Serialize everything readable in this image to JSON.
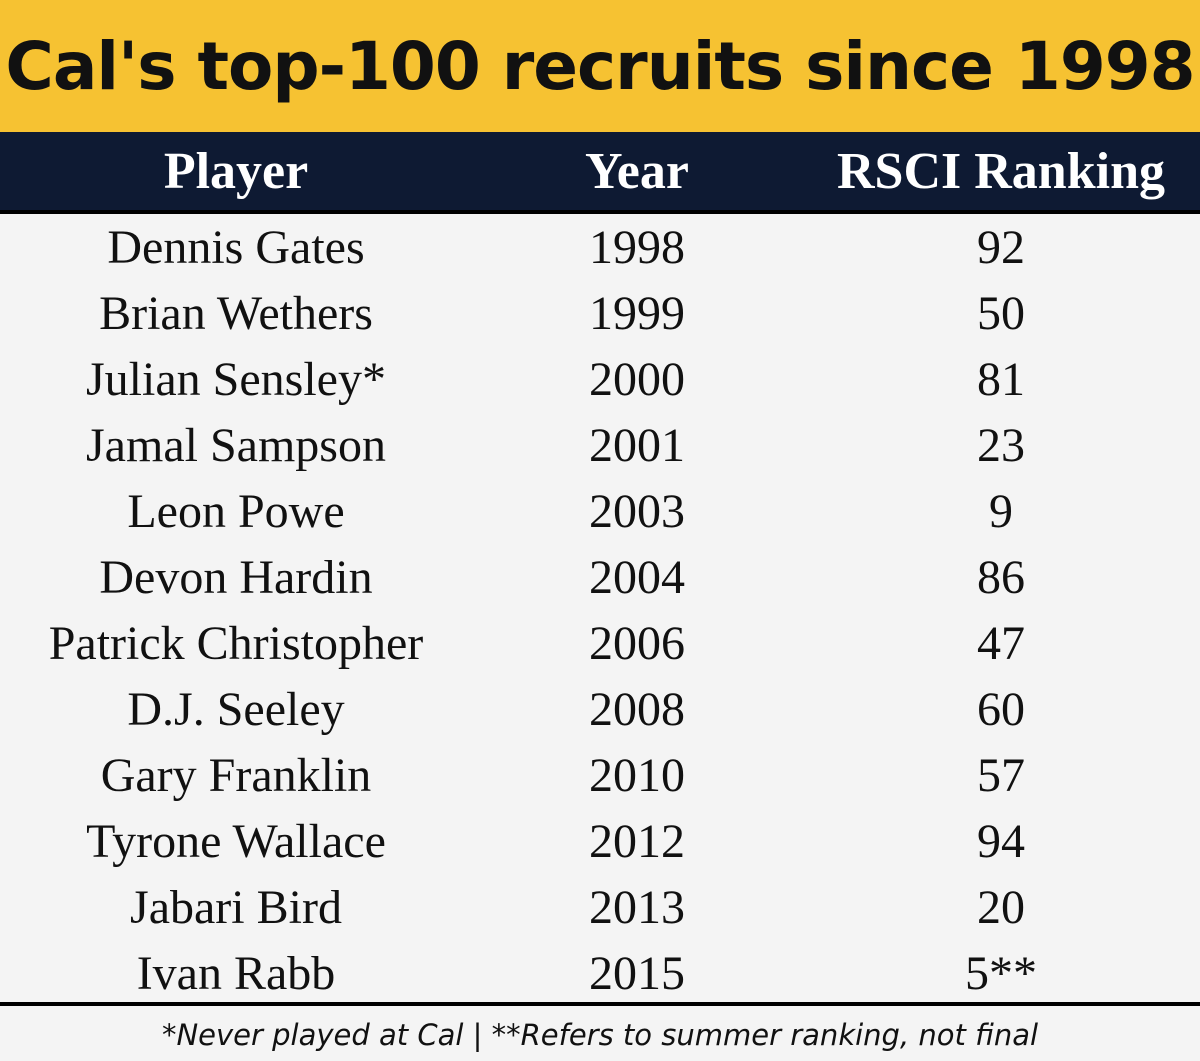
{
  "title": "Cal's top-100 recruits since 1998",
  "footnote": "*Never played at Cal | **Refers to summer ranking, not final",
  "colors": {
    "title_background": "#f6c232",
    "header_background": "#0e1a33",
    "header_text": "#ffffff",
    "body_background": "#f4f4f4"
  },
  "chart_data": {
    "type": "table",
    "title": "Cal's top-100 recruits since 1998",
    "columns": [
      "Player",
      "Year",
      "RSCI Ranking"
    ],
    "rows": [
      [
        "Dennis Gates",
        "1998",
        "92"
      ],
      [
        "Brian Wethers",
        "1999",
        "50"
      ],
      [
        "Julian Sensley*",
        "2000",
        "81"
      ],
      [
        "Jamal Sampson",
        "2001",
        "23"
      ],
      [
        "Leon Powe",
        "2003",
        "9"
      ],
      [
        "Devon Hardin",
        "2004",
        "86"
      ],
      [
        "Patrick Christopher",
        "2006",
        "47"
      ],
      [
        "D.J. Seeley",
        "2008",
        "60"
      ],
      [
        "Gary Franklin",
        "2010",
        "57"
      ],
      [
        "Tyrone Wallace",
        "2012",
        "94"
      ],
      [
        "Jabari Bird",
        "2013",
        "20"
      ],
      [
        "Ivan Rabb",
        "2015",
        "5**"
      ]
    ]
  }
}
